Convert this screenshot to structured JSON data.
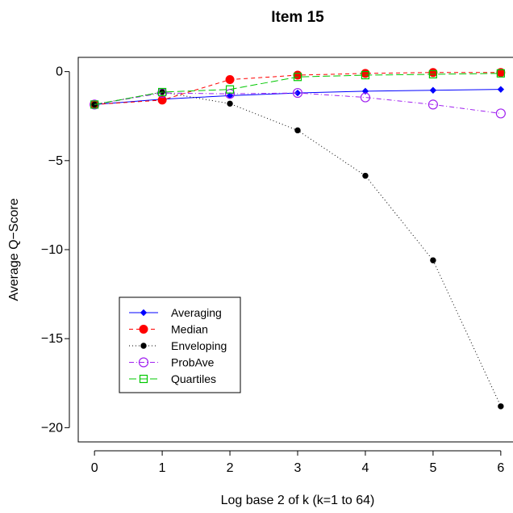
{
  "chart_data": {
    "type": "line",
    "title": "Item 15",
    "xlabel": "Log base 2 of k (k=1 to 64)",
    "ylabel": "Average Q−Score",
    "x": [
      0,
      1,
      2,
      3,
      4,
      5,
      6
    ],
    "xlim": [
      -0.24,
      6.24
    ],
    "ylim": [
      -20.8,
      0.8
    ],
    "xticks": [
      0,
      1,
      2,
      3,
      4,
      5,
      6
    ],
    "yticks": [
      0,
      -5,
      -10,
      -15,
      -20
    ],
    "ytick_labels": [
      "0",
      "−5",
      "−10",
      "−15",
      "−20"
    ],
    "grid": false,
    "legend_position": "bottom-left",
    "series": [
      {
        "name": "Averaging",
        "color": "#0000ff",
        "dash": "solid",
        "marker": "filled-diamond",
        "values": [
          -1.85,
          -1.55,
          -1.35,
          -1.2,
          -1.1,
          -1.05,
          -1.0
        ]
      },
      {
        "name": "Median",
        "color": "#ff0000",
        "dash": "dashed",
        "marker": "filled-circle-large",
        "values": [
          -1.85,
          -1.6,
          -0.45,
          -0.2,
          -0.1,
          -0.05,
          -0.05
        ]
      },
      {
        "name": "Enveloping",
        "color": "#000000",
        "dash": "dotted",
        "marker": "filled-circle-small",
        "values": [
          -1.85,
          -1.15,
          -1.8,
          -3.3,
          -5.85,
          -10.6,
          -18.8
        ]
      },
      {
        "name": "ProbAve",
        "color": "#a020f0",
        "dash": "dashdot",
        "marker": "open-circle",
        "values": [
          -1.85,
          -1.2,
          -1.25,
          -1.2,
          -1.45,
          -1.85,
          -2.35
        ]
      },
      {
        "name": "Quartiles",
        "color": "#00c800",
        "dash": "longdash",
        "marker": "open-square",
        "values": [
          -1.85,
          -1.15,
          -1.0,
          -0.3,
          -0.2,
          -0.15,
          -0.1
        ]
      }
    ]
  }
}
